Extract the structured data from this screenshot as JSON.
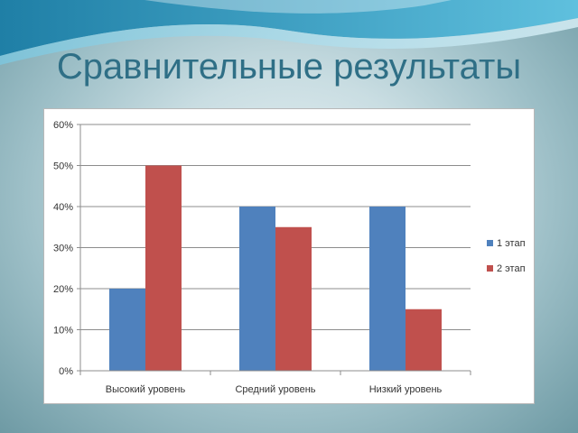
{
  "slide": {
    "title": "Сравнительные результаты"
  },
  "colors": {
    "series1": "#4f81bd",
    "series2": "#c0504d"
  },
  "chart_data": {
    "type": "bar",
    "title": "",
    "xlabel": "",
    "ylabel": "",
    "categories": [
      "Высокий уровень",
      "Средний уровень",
      "Низкий уровень"
    ],
    "series": [
      {
        "name": "1 этап",
        "values": [
          20,
          40,
          40
        ]
      },
      {
        "name": "2 этап",
        "values": [
          50,
          35,
          15
        ]
      }
    ],
    "ylim": [
      0,
      60
    ],
    "yticks": [
      "0%",
      "10%",
      "20%",
      "30%",
      "40%",
      "50%",
      "60%"
    ],
    "grid": true,
    "legend": "right"
  }
}
